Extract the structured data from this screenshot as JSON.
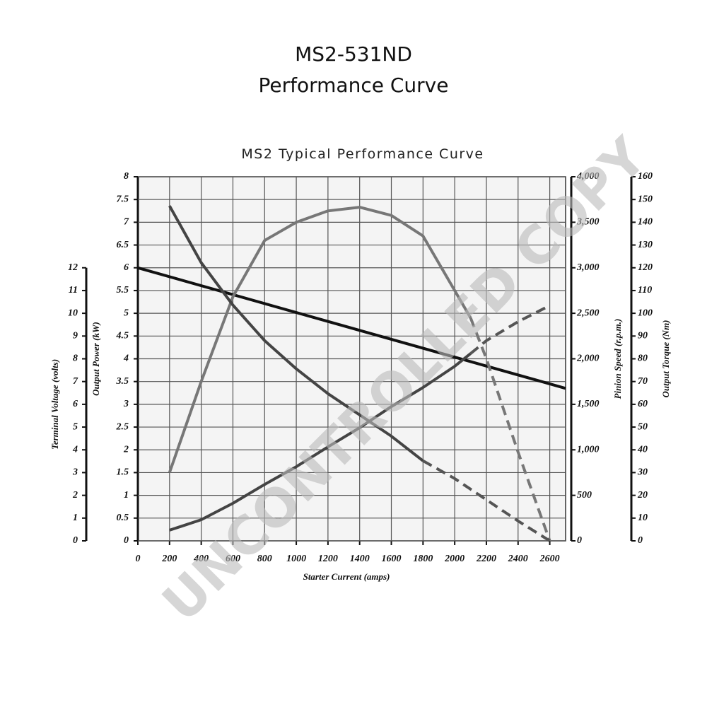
{
  "chart_data": {
    "type": "line",
    "title": "MS2-531ND",
    "title_line2": "Performance Curve",
    "subtitle": "MS2 Typical Performance Curve",
    "watermark": "UNCONTROLLED COPY",
    "x_label": "Starter Current  (amps)",
    "xlim": [
      0,
      2700
    ],
    "xticks": [
      0,
      200,
      400,
      600,
      800,
      1000,
      1200,
      1400,
      1600,
      1800,
      2000,
      2200,
      2400,
      2600
    ],
    "grid": true,
    "y_axes": [
      {
        "label": "Terminal Voltage (volts)",
        "side": "left-outer",
        "ylim": [
          0,
          12
        ],
        "yticks": [
          0,
          1,
          2,
          3,
          4,
          5,
          6,
          7,
          8,
          9,
          10,
          11,
          12
        ]
      },
      {
        "label": "Output Power (kW)",
        "side": "left",
        "ylim": [
          0,
          8
        ],
        "yticks": [
          0,
          0.5,
          1,
          1.5,
          2,
          2.5,
          3,
          3.5,
          4,
          4.5,
          5,
          5.5,
          6,
          6.5,
          7,
          7.5,
          8
        ]
      },
      {
        "label": "Pinion Speed (r.p.m.)",
        "side": "right",
        "ylim": [
          0,
          4000
        ],
        "yticks": [
          0,
          500,
          {
            "value": 1000,
            "label": "1,000"
          },
          {
            "value": 1500,
            "label": "1,500"
          },
          {
            "value": 2000,
            "label": "2,000"
          },
          {
            "value": 2500,
            "label": "2,500"
          },
          {
            "value": 3000,
            "label": "3,000"
          },
          {
            "value": 3500,
            "label": "3,500"
          },
          {
            "value": 4000,
            "label": "4,000"
          }
        ]
      },
      {
        "label": "Output Torque (Nm)",
        "side": "right-outer",
        "ylim": [
          0,
          160
        ],
        "yticks": [
          0,
          10,
          20,
          30,
          40,
          50,
          60,
          70,
          80,
          90,
          100,
          110,
          120,
          130,
          140,
          150,
          160
        ]
      }
    ],
    "series": [
      {
        "axis": 0,
        "color": "#111111",
        "dashed": false,
        "x": [
          0,
          1400,
          2700
        ],
        "values": [
          12,
          9.25,
          6.7
        ]
      },
      {
        "axis": 1,
        "color": "#777777",
        "dashed": false,
        "x": [
          200,
          400,
          600,
          800,
          1000,
          1200,
          1400,
          1600,
          1800,
          2000,
          2100
        ],
        "values": [
          1.5,
          3.5,
          5.36,
          6.6,
          7.0,
          7.25,
          7.33,
          7.15,
          6.7,
          5.5,
          4.9
        ]
      },
      {
        "axis": 1,
        "color": "#777777",
        "dashed": true,
        "x": [
          2100,
          2200,
          2400,
          2600
        ],
        "values": [
          4.9,
          4.0,
          1.95,
          0
        ]
      },
      {
        "axis": 2,
        "color": "#444444",
        "dashed": false,
        "x": [
          200,
          400,
          600,
          800,
          1000,
          1200,
          1400,
          1600,
          1800
        ],
        "values": [
          3680,
          3056,
          2590,
          2200,
          1890,
          1617,
          1384,
          1150,
          879
        ]
      },
      {
        "axis": 2,
        "color": "#555555",
        "dashed": true,
        "x": [
          1800,
          2000,
          2200,
          2400,
          2600
        ],
        "values": [
          879,
          684,
          451,
          218,
          0
        ]
      },
      {
        "axis": 3,
        "color": "#444444",
        "dashed": false,
        "x": [
          200,
          400,
          600,
          800,
          1000,
          1200,
          1400,
          1600,
          1800,
          2000,
          2100
        ],
        "values": [
          4.7,
          9.3,
          16.5,
          24.8,
          32.6,
          41.3,
          49.7,
          59,
          67.4,
          76.7,
          82.3
        ]
      },
      {
        "axis": 3,
        "color": "#555555",
        "dashed": true,
        "x": [
          2100,
          2200,
          2400,
          2600
        ],
        "values": [
          82.3,
          88,
          96.3,
          103.4
        ]
      }
    ]
  }
}
